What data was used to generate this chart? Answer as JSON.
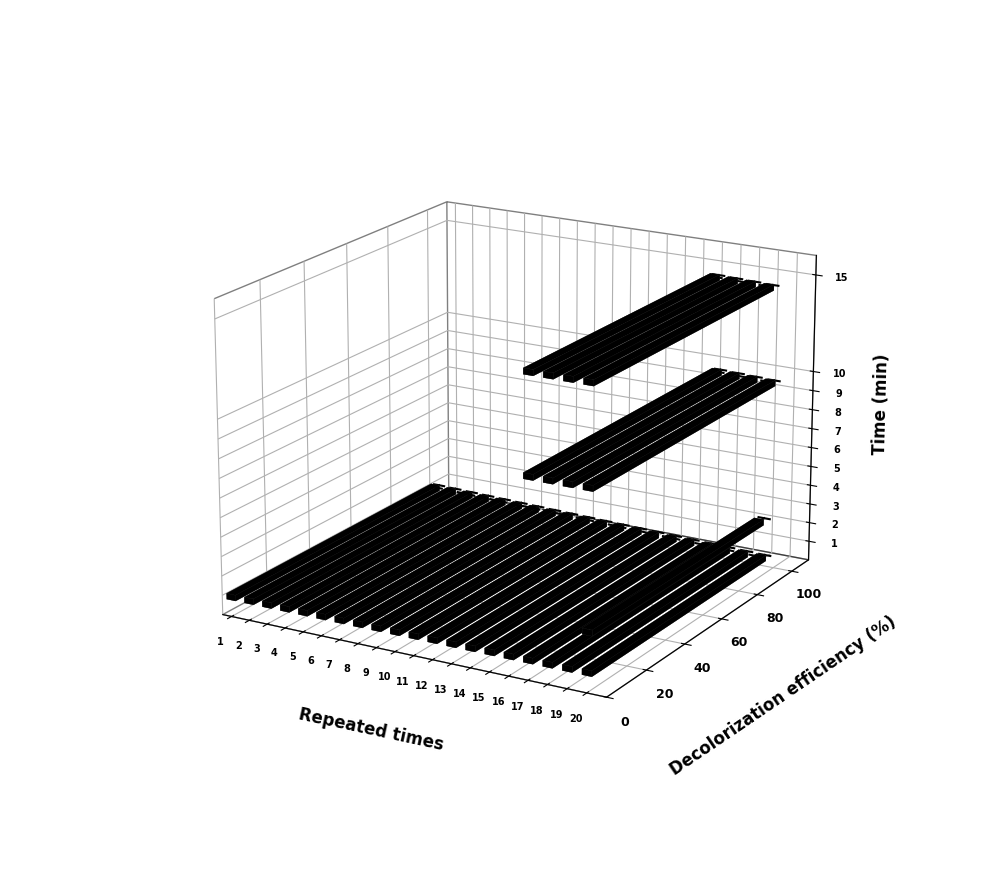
{
  "ylabel": "Decolorization efficiency (%)",
  "xlabel": "Repeated times",
  "zlabel": "Time (min)",
  "bar_color": "#000000",
  "background_color": "#ffffff",
  "elev": 18,
  "azim": -60,
  "yticks": [
    0,
    20,
    40,
    60,
    80,
    100
  ],
  "xticks": [
    1,
    2,
    3,
    4,
    5,
    6,
    7,
    8,
    9,
    10,
    11,
    12,
    13,
    14,
    15,
    16,
    17,
    18,
    19,
    20
  ],
  "zticks": [
    1,
    2,
    3,
    4,
    5,
    6,
    7,
    8,
    9,
    10,
    15
  ],
  "bars_t1": {
    "reps": [
      1,
      2,
      3,
      4,
      5,
      6,
      7,
      8,
      9,
      10,
      11,
      12,
      13,
      14,
      15,
      16,
      17,
      18,
      19,
      20
    ],
    "effs": [
      98.5,
      98.2,
      97.9,
      97.6,
      97.3,
      97.0,
      96.7,
      96.4,
      96.1,
      95.8,
      95.5,
      95.2,
      94.9,
      94.6,
      94.3,
      94.0,
      93.7,
      93.4,
      93.1,
      92.8
    ],
    "time": 1
  },
  "bars_t3": {
    "reps": [
      20
    ],
    "effs": [
      91.0
    ],
    "time": 3
  },
  "bars_t10": {
    "reps": [
      17,
      18,
      19,
      20
    ],
    "effs": [
      97.5,
      97.0,
      96.5,
      96.0
    ],
    "time": 10
  },
  "bars_t15": {
    "reps": [
      17,
      18,
      19,
      20
    ],
    "effs": [
      95.5,
      95.0,
      94.5,
      94.0
    ],
    "time": 15
  },
  "dashed_lines": [
    {
      "time": 1,
      "reps": [
        1,
        2,
        3,
        4,
        5,
        6,
        7,
        8,
        9,
        10,
        11,
        12,
        13,
        14,
        15,
        16,
        17,
        18,
        19,
        20
      ],
      "effs": [
        98.5,
        98.2,
        97.9,
        97.6,
        97.3,
        97.0,
        96.7,
        96.4,
        96.1,
        95.8,
        95.5,
        95.2,
        94.9,
        94.6,
        94.3,
        94.0,
        93.7,
        93.4,
        93.1,
        92.8
      ]
    },
    {
      "time": 10,
      "reps": [
        17,
        18,
        19,
        20
      ],
      "effs": [
        97.5,
        97.0,
        96.5,
        96.0
      ]
    },
    {
      "time": 15,
      "reps": [
        17,
        18,
        19,
        20
      ],
      "effs": [
        95.5,
        95.0,
        94.5,
        94.0
      ]
    }
  ],
  "errorbars": [
    {
      "time": 1,
      "reps": [
        1,
        2,
        3,
        4,
        5,
        6,
        7,
        8,
        9,
        10,
        11,
        12,
        13,
        14,
        15,
        16,
        17,
        18,
        19,
        20
      ],
      "effs": [
        98.5,
        98.2,
        97.9,
        97.6,
        97.3,
        97.0,
        96.7,
        96.4,
        96.1,
        95.8,
        95.5,
        95.2,
        94.9,
        94.6,
        94.3,
        94.0,
        93.7,
        93.4,
        93.1,
        92.8
      ],
      "errs": [
        2,
        2,
        2,
        2,
        2,
        2,
        2,
        2,
        2,
        2,
        2,
        2,
        2,
        2,
        2,
        2,
        2,
        2,
        2,
        2
      ]
    },
    {
      "time": 3,
      "reps": [
        20
      ],
      "effs": [
        91.0
      ],
      "errs": [
        3
      ]
    },
    {
      "time": 10,
      "reps": [
        17,
        18,
        19,
        20
      ],
      "effs": [
        97.5,
        97.0,
        96.5,
        96.0
      ],
      "errs": [
        2,
        2,
        2,
        2
      ]
    },
    {
      "time": 15,
      "reps": [
        17,
        18,
        19,
        20
      ],
      "effs": [
        95.5,
        95.0,
        94.5,
        94.0
      ],
      "errs": [
        2,
        2,
        2,
        2
      ]
    }
  ]
}
